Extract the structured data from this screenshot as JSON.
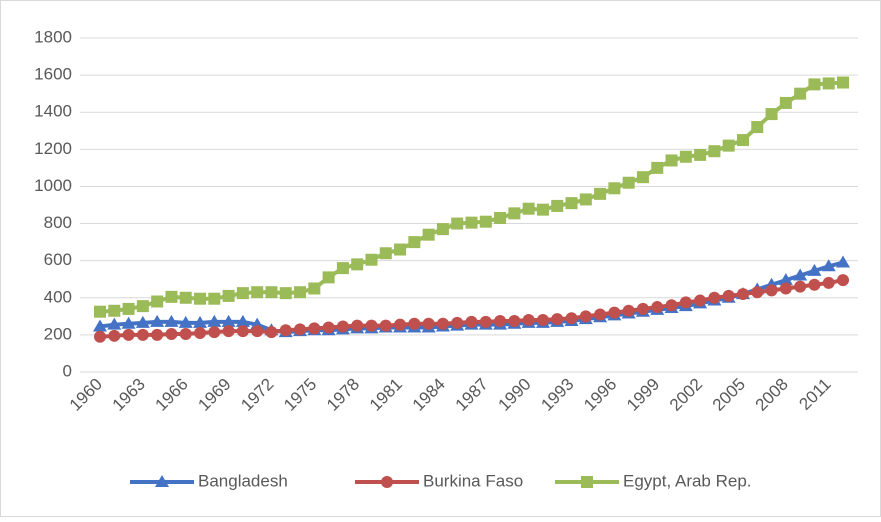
{
  "chart_data": {
    "type": "line",
    "categories": [
      "1960",
      null,
      null,
      "1963",
      null,
      null,
      "1966",
      null,
      null,
      "1969",
      null,
      null,
      "1972",
      null,
      null,
      "1975",
      null,
      null,
      "1978",
      null,
      null,
      "1981",
      null,
      null,
      "1984",
      null,
      null,
      "1987",
      null,
      null,
      "1990",
      null,
      null,
      "1993",
      null,
      null,
      "1996",
      null,
      null,
      "1999",
      null,
      null,
      "2002",
      null,
      null,
      "2005",
      null,
      null,
      "2008",
      null,
      null,
      "2011",
      null
    ],
    "series": [
      {
        "name": "Bangladesh",
        "color": "#4472c4",
        "marker": "triangle",
        "values": [
          245,
          255,
          260,
          265,
          270,
          270,
          265,
          265,
          270,
          270,
          270,
          255,
          225,
          215,
          220,
          225,
          225,
          230,
          235,
          235,
          240,
          240,
          240,
          240,
          245,
          250,
          255,
          255,
          255,
          260,
          265,
          265,
          270,
          275,
          285,
          295,
          305,
          315,
          325,
          335,
          345,
          355,
          370,
          385,
          400,
          420,
          445,
          470,
          495,
          520,
          545,
          570,
          590
        ]
      },
      {
        "name": "Burkina Faso",
        "color": "#c0504d",
        "marker": "circle",
        "values": [
          190,
          195,
          200,
          200,
          200,
          205,
          205,
          210,
          215,
          220,
          220,
          220,
          215,
          225,
          230,
          235,
          240,
          245,
          250,
          250,
          250,
          255,
          260,
          260,
          260,
          265,
          270,
          270,
          275,
          275,
          280,
          280,
          285,
          290,
          300,
          310,
          320,
          330,
          340,
          350,
          360,
          375,
          385,
          400,
          410,
          420,
          430,
          440,
          450,
          460,
          470,
          480,
          495
        ]
      },
      {
        "name": "Egypt, Arab Rep.",
        "color": "#9bbb59",
        "marker": "square",
        "values": [
          325,
          330,
          340,
          355,
          380,
          405,
          400,
          395,
          395,
          410,
          425,
          430,
          430,
          425,
          430,
          450,
          510,
          560,
          580,
          605,
          640,
          660,
          700,
          740,
          770,
          800,
          805,
          810,
          830,
          855,
          880,
          875,
          895,
          910,
          930,
          960,
          990,
          1020,
          1050,
          1100,
          1140,
          1160,
          1170,
          1190,
          1220,
          1250,
          1320,
          1390,
          1450,
          1500,
          1550,
          1555,
          1560
        ]
      }
    ],
    "ylim": [
      0,
      1800
    ],
    "yticks": [
      0,
      200,
      400,
      600,
      800,
      1000,
      1200,
      1400,
      1600,
      1800
    ],
    "grid": true,
    "legend": "bottom"
  }
}
